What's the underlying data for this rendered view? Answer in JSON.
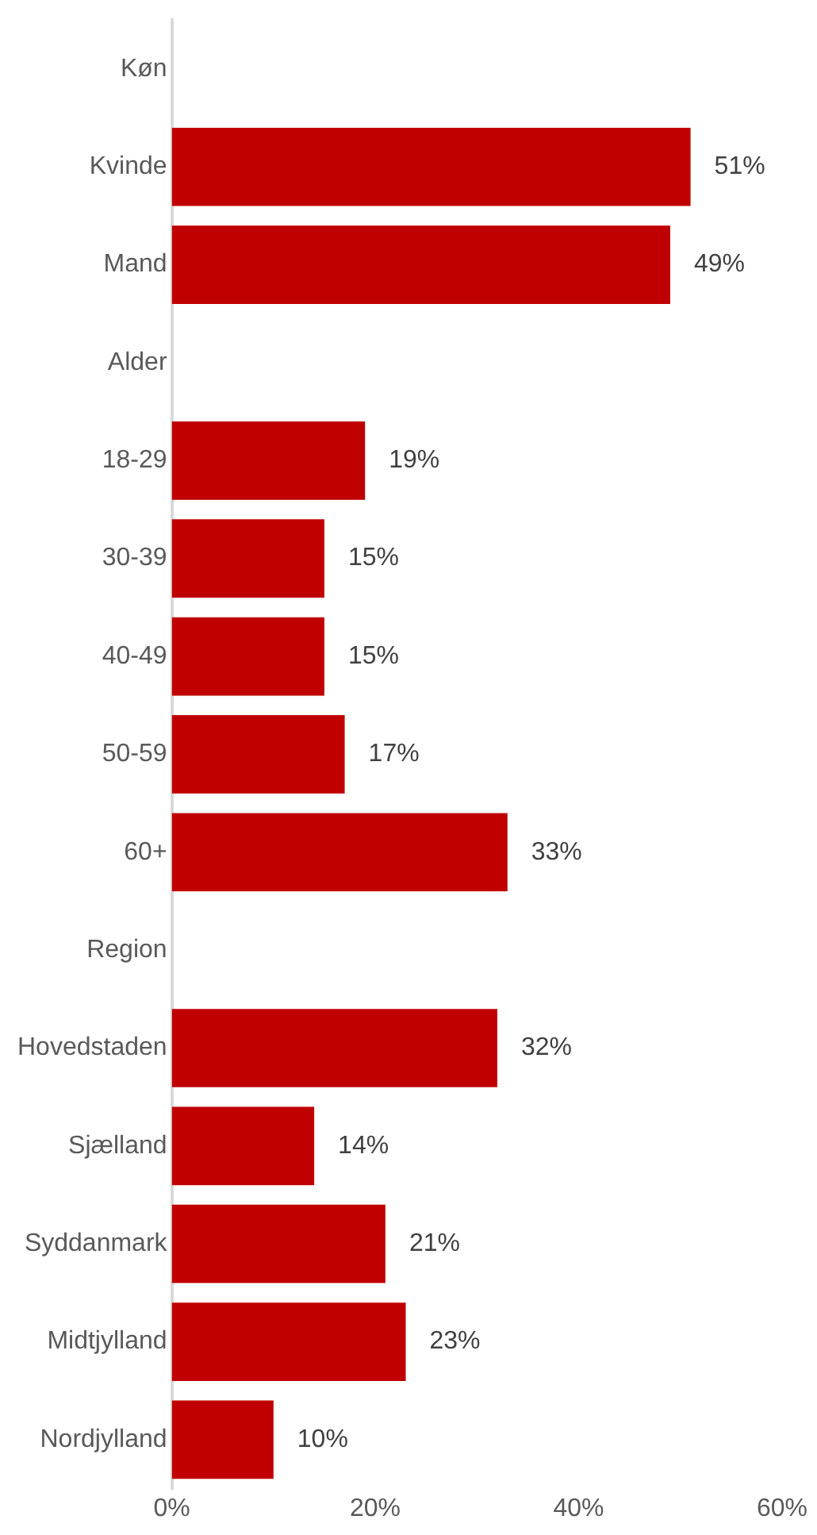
{
  "chart_data": {
    "type": "bar",
    "orientation": "horizontal",
    "categories": [
      "Køn",
      "Kvinde",
      "Mand",
      "Alder",
      "18-29",
      "30-39",
      "40-49",
      "50-59",
      "60+",
      "Region",
      "Hovedstaden",
      "Sjælland",
      "Syddanmark",
      "Midtjylland",
      "Nordjylland"
    ],
    "values": [
      null,
      51,
      49,
      null,
      19,
      15,
      15,
      17,
      33,
      null,
      32,
      14,
      21,
      23,
      10
    ],
    "value_labels": [
      null,
      "51%",
      "49%",
      null,
      "19%",
      "15%",
      "15%",
      "17%",
      "33%",
      null,
      "32%",
      "14%",
      "21%",
      "23%",
      "10%"
    ],
    "color": "#c00000",
    "xlim": [
      0,
      60
    ],
    "xticks": [
      {
        "value": 0,
        "label": "0%"
      },
      {
        "value": 20,
        "label": "20%"
      },
      {
        "value": 40,
        "label": "40%"
      },
      {
        "value": 60,
        "label": "60%"
      }
    ],
    "grid": false,
    "legend": false
  }
}
